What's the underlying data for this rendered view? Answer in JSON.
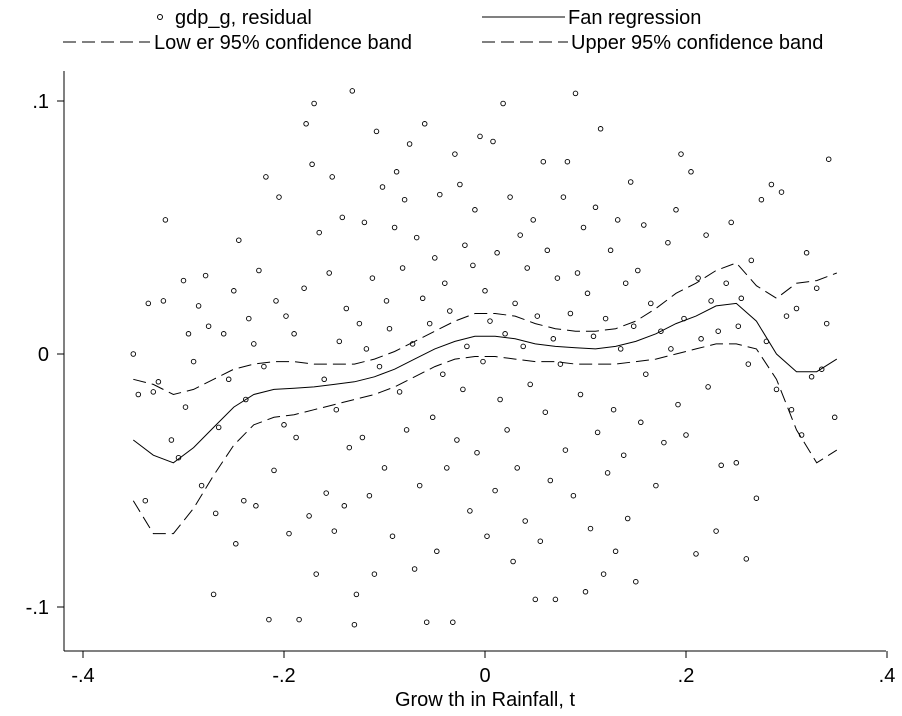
{
  "chart_data": {
    "type": "scatter",
    "title": "",
    "xlabel": "Grow th in Rainfall, t",
    "ylabel": "",
    "xlim": [
      -0.4,
      0.4
    ],
    "ylim": [
      -0.12,
      0.11
    ],
    "x_ticks": [
      -0.4,
      -0.2,
      0,
      0.2,
      0.4
    ],
    "x_tick_labels": [
      "-.4",
      "-.2",
      "0",
      ".2",
      ".4"
    ],
    "y_ticks": [
      -0.1,
      0,
      0.1
    ],
    "y_tick_labels": [
      "-.1",
      "0",
      ".1"
    ],
    "grid": false,
    "legend_position": "top",
    "legend": [
      {
        "label": "gdp_g, residual",
        "style": "hollow-circle"
      },
      {
        "label": "Fan regression",
        "style": "solid-line"
      },
      {
        "label": "Low er 95% confidence band",
        "style": "dashed-line"
      },
      {
        "label": "Upper 95% confidence band",
        "style": "dashed-line"
      }
    ],
    "series": [
      {
        "name": "Fan regression",
        "type": "line",
        "x": [
          -0.35,
          -0.33,
          -0.31,
          -0.29,
          -0.27,
          -0.25,
          -0.23,
          -0.21,
          -0.19,
          -0.17,
          -0.15,
          -0.13,
          -0.11,
          -0.09,
          -0.07,
          -0.05,
          -0.03,
          -0.01,
          0.01,
          0.03,
          0.05,
          0.07,
          0.09,
          0.11,
          0.13,
          0.15,
          0.17,
          0.19,
          0.21,
          0.23,
          0.25,
          0.27,
          0.29,
          0.31,
          0.33,
          0.35
        ],
        "y": [
          -0.034,
          -0.04,
          -0.043,
          -0.037,
          -0.029,
          -0.021,
          -0.016,
          -0.014,
          -0.0135,
          -0.013,
          -0.012,
          -0.011,
          -0.009,
          -0.006,
          -0.002,
          0.002,
          0.005,
          0.007,
          0.007,
          0.006,
          0.004,
          0.003,
          0.0025,
          0.002,
          0.003,
          0.005,
          0.008,
          0.012,
          0.015,
          0.019,
          0.02,
          0.013,
          0.0,
          -0.007,
          -0.007,
          -0.002
        ]
      },
      {
        "name": "Low er 95% confidence band",
        "type": "line",
        "x": [
          -0.35,
          -0.33,
          -0.31,
          -0.29,
          -0.27,
          -0.25,
          -0.23,
          -0.21,
          -0.19,
          -0.17,
          -0.15,
          -0.13,
          -0.11,
          -0.09,
          -0.07,
          -0.05,
          -0.03,
          -0.01,
          0.01,
          0.03,
          0.05,
          0.07,
          0.09,
          0.11,
          0.13,
          0.15,
          0.17,
          0.19,
          0.21,
          0.23,
          0.25,
          0.27,
          0.29,
          0.31,
          0.33,
          0.35
        ],
        "y": [
          -0.058,
          -0.071,
          -0.071,
          -0.061,
          -0.048,
          -0.036,
          -0.028,
          -0.025,
          -0.024,
          -0.022,
          -0.02,
          -0.018,
          -0.016,
          -0.013,
          -0.009,
          -0.005,
          -0.002,
          -0.001,
          -0.001,
          -0.002,
          -0.003,
          -0.003,
          -0.004,
          -0.004,
          -0.004,
          -0.003,
          -0.002,
          0.0,
          0.002,
          0.004,
          0.004,
          0.002,
          -0.01,
          -0.03,
          -0.043,
          -0.038
        ]
      },
      {
        "name": "Upper 95% confidence band",
        "type": "line",
        "x": [
          -0.35,
          -0.33,
          -0.31,
          -0.29,
          -0.27,
          -0.25,
          -0.23,
          -0.21,
          -0.19,
          -0.17,
          -0.15,
          -0.13,
          -0.11,
          -0.09,
          -0.07,
          -0.05,
          -0.03,
          -0.01,
          0.01,
          0.03,
          0.05,
          0.07,
          0.09,
          0.11,
          0.13,
          0.15,
          0.17,
          0.19,
          0.21,
          0.23,
          0.25,
          0.27,
          0.29,
          0.31,
          0.33,
          0.35
        ],
        "y": [
          -0.01,
          -0.012,
          -0.016,
          -0.014,
          -0.01,
          -0.006,
          -0.004,
          -0.003,
          -0.003,
          -0.004,
          -0.004,
          -0.004,
          -0.002,
          0.001,
          0.005,
          0.009,
          0.013,
          0.016,
          0.016,
          0.015,
          0.012,
          0.01,
          0.009,
          0.009,
          0.01,
          0.013,
          0.018,
          0.024,
          0.028,
          0.033,
          0.036,
          0.027,
          0.022,
          0.028,
          0.029,
          0.032
        ]
      },
      {
        "name": "gdp_g, residual",
        "type": "scatter",
        "points": [
          [
            -0.35,
            0.0
          ],
          [
            -0.345,
            -0.016
          ],
          [
            -0.338,
            -0.058
          ],
          [
            -0.335,
            0.02
          ],
          [
            -0.33,
            -0.015
          ],
          [
            -0.325,
            -0.011
          ],
          [
            -0.318,
            0.053
          ],
          [
            -0.32,
            0.021
          ],
          [
            -0.312,
            -0.034
          ],
          [
            -0.305,
            -0.041
          ],
          [
            -0.3,
            0.029
          ],
          [
            -0.298,
            -0.021
          ],
          [
            -0.295,
            0.008
          ],
          [
            -0.29,
            -0.003
          ],
          [
            -0.285,
            0.019
          ],
          [
            -0.282,
            -0.052
          ],
          [
            -0.278,
            0.031
          ],
          [
            -0.275,
            0.011
          ],
          [
            -0.27,
            -0.095
          ],
          [
            -0.268,
            -0.063
          ],
          [
            -0.265,
            -0.029
          ],
          [
            -0.26,
            0.008
          ],
          [
            -0.255,
            -0.01
          ],
          [
            -0.25,
            0.025
          ],
          [
            -0.248,
            -0.075
          ],
          [
            -0.245,
            0.045
          ],
          [
            -0.24,
            -0.058
          ],
          [
            -0.238,
            -0.018
          ],
          [
            -0.235,
            0.014
          ],
          [
            -0.23,
            0.004
          ],
          [
            -0.228,
            -0.06
          ],
          [
            -0.225,
            0.033
          ],
          [
            -0.22,
            -0.005
          ],
          [
            -0.218,
            0.07
          ],
          [
            -0.215,
            -0.105
          ],
          [
            -0.21,
            -0.046
          ],
          [
            -0.208,
            0.021
          ],
          [
            -0.205,
            0.062
          ],
          [
            -0.2,
            -0.028
          ],
          [
            -0.198,
            0.015
          ],
          [
            -0.195,
            -0.071
          ],
          [
            -0.19,
            0.008
          ],
          [
            -0.188,
            -0.033
          ],
          [
            -0.185,
            -0.105
          ],
          [
            -0.18,
            0.026
          ],
          [
            -0.178,
            0.091
          ],
          [
            -0.175,
            -0.064
          ],
          [
            -0.172,
            0.075
          ],
          [
            -0.17,
            0.099
          ],
          [
            -0.168,
            -0.087
          ],
          [
            -0.165,
            0.048
          ],
          [
            -0.16,
            -0.01
          ],
          [
            -0.158,
            -0.055
          ],
          [
            -0.155,
            0.032
          ],
          [
            -0.152,
            0.07
          ],
          [
            -0.15,
            -0.07
          ],
          [
            -0.148,
            -0.022
          ],
          [
            -0.145,
            0.005
          ],
          [
            -0.142,
            0.054
          ],
          [
            -0.14,
            -0.06
          ],
          [
            -0.138,
            0.018
          ],
          [
            -0.135,
            -0.037
          ],
          [
            -0.132,
            0.104
          ],
          [
            -0.13,
            -0.107
          ],
          [
            -0.128,
            -0.095
          ],
          [
            -0.125,
            0.012
          ],
          [
            -0.122,
            -0.033
          ],
          [
            -0.12,
            0.052
          ],
          [
            -0.118,
            0.002
          ],
          [
            -0.115,
            -0.056
          ],
          [
            -0.112,
            0.03
          ],
          [
            -0.11,
            -0.087
          ],
          [
            -0.108,
            0.088
          ],
          [
            -0.105,
            -0.005
          ],
          [
            -0.102,
            0.066
          ],
          [
            -0.1,
            -0.045
          ],
          [
            -0.098,
            0.021
          ],
          [
            -0.095,
            0.01
          ],
          [
            -0.092,
            -0.072
          ],
          [
            -0.09,
            0.05
          ],
          [
            -0.088,
            0.072
          ],
          [
            -0.085,
            -0.015
          ],
          [
            -0.082,
            0.034
          ],
          [
            -0.08,
            0.061
          ],
          [
            -0.078,
            -0.03
          ],
          [
            -0.075,
            0.083
          ],
          [
            -0.072,
            0.004
          ],
          [
            -0.07,
            -0.085
          ],
          [
            -0.068,
            0.046
          ],
          [
            -0.065,
            -0.052
          ],
          [
            -0.062,
            0.022
          ],
          [
            -0.06,
            0.091
          ],
          [
            -0.058,
            -0.106
          ],
          [
            -0.055,
            0.012
          ],
          [
            -0.052,
            -0.025
          ],
          [
            -0.05,
            0.038
          ],
          [
            -0.048,
            -0.078
          ],
          [
            -0.045,
            0.063
          ],
          [
            -0.042,
            -0.008
          ],
          [
            -0.04,
            0.028
          ],
          [
            -0.038,
            -0.045
          ],
          [
            -0.035,
            0.017
          ],
          [
            -0.032,
            -0.106
          ],
          [
            -0.03,
            0.079
          ],
          [
            -0.028,
            -0.034
          ],
          [
            -0.025,
            0.067
          ],
          [
            -0.022,
            -0.014
          ],
          [
            -0.02,
            0.043
          ],
          [
            -0.018,
            0.003
          ],
          [
            -0.015,
            -0.062
          ],
          [
            -0.012,
            0.035
          ],
          [
            -0.01,
            0.057
          ],
          [
            -0.008,
            -0.039
          ],
          [
            -0.005,
            0.086
          ],
          [
            -0.002,
            -0.003
          ],
          [
            0.0,
            0.025
          ],
          [
            0.002,
            -0.072
          ],
          [
            0.005,
            0.013
          ],
          [
            0.008,
            0.084
          ],
          [
            0.01,
            -0.054
          ],
          [
            0.012,
            0.04
          ],
          [
            0.015,
            -0.018
          ],
          [
            0.018,
            0.099
          ],
          [
            0.02,
            0.008
          ],
          [
            0.022,
            -0.03
          ],
          [
            0.025,
            0.062
          ],
          [
            0.028,
            -0.082
          ],
          [
            0.03,
            0.02
          ],
          [
            0.032,
            -0.045
          ],
          [
            0.035,
            0.047
          ],
          [
            0.038,
            0.003
          ],
          [
            0.04,
            -0.066
          ],
          [
            0.042,
            0.034
          ],
          [
            0.045,
            -0.012
          ],
          [
            0.048,
            0.053
          ],
          [
            0.05,
            -0.097
          ],
          [
            0.052,
            0.015
          ],
          [
            0.055,
            -0.074
          ],
          [
            0.058,
            0.076
          ],
          [
            0.06,
            -0.023
          ],
          [
            0.062,
            0.041
          ],
          [
            0.065,
            -0.05
          ],
          [
            0.068,
            0.006
          ],
          [
            0.07,
            -0.097
          ],
          [
            0.072,
            0.03
          ],
          [
            0.075,
            -0.004
          ],
          [
            0.078,
            0.062
          ],
          [
            0.08,
            -0.038
          ],
          [
            0.082,
            0.076
          ],
          [
            0.085,
            0.016
          ],
          [
            0.088,
            -0.056
          ],
          [
            0.09,
            0.103
          ],
          [
            0.092,
            0.032
          ],
          [
            0.095,
            -0.016
          ],
          [
            0.098,
            0.05
          ],
          [
            0.1,
            -0.094
          ],
          [
            0.102,
            0.024
          ],
          [
            0.105,
            -0.069
          ],
          [
            0.108,
            0.007
          ],
          [
            0.11,
            0.058
          ],
          [
            0.112,
            -0.031
          ],
          [
            0.115,
            0.089
          ],
          [
            0.118,
            -0.087
          ],
          [
            0.12,
            0.014
          ],
          [
            0.122,
            -0.047
          ],
          [
            0.125,
            0.041
          ],
          [
            0.128,
            -0.022
          ],
          [
            0.13,
            -0.078
          ],
          [
            0.132,
            0.053
          ],
          [
            0.135,
            0.002
          ],
          [
            0.138,
            -0.04
          ],
          [
            0.14,
            0.028
          ],
          [
            0.142,
            -0.065
          ],
          [
            0.145,
            0.068
          ],
          [
            0.148,
            0.011
          ],
          [
            0.15,
            -0.09
          ],
          [
            0.152,
            0.033
          ],
          [
            0.155,
            -0.027
          ],
          [
            0.158,
            0.051
          ],
          [
            0.16,
            -0.008
          ],
          [
            0.165,
            0.02
          ],
          [
            0.17,
            -0.052
          ],
          [
            0.175,
            0.009
          ],
          [
            0.178,
            -0.035
          ],
          [
            0.182,
            0.044
          ],
          [
            0.185,
            0.002
          ],
          [
            0.19,
            0.057
          ],
          [
            0.192,
            -0.02
          ],
          [
            0.195,
            0.079
          ],
          [
            0.198,
            0.014
          ],
          [
            0.2,
            -0.032
          ],
          [
            0.205,
            0.072
          ],
          [
            0.21,
            -0.079
          ],
          [
            0.212,
            0.03
          ],
          [
            0.215,
            0.006
          ],
          [
            0.22,
            0.047
          ],
          [
            0.222,
            -0.013
          ],
          [
            0.225,
            0.021
          ],
          [
            0.23,
            -0.07
          ],
          [
            0.232,
            0.009
          ],
          [
            0.235,
            -0.044
          ],
          [
            0.24,
            0.028
          ],
          [
            0.245,
            0.052
          ],
          [
            0.25,
            -0.043
          ],
          [
            0.252,
            0.011
          ],
          [
            0.255,
            0.022
          ],
          [
            0.26,
            -0.081
          ],
          [
            0.262,
            -0.004
          ],
          [
            0.265,
            0.037
          ],
          [
            0.27,
            -0.057
          ],
          [
            0.275,
            0.061
          ],
          [
            0.28,
            0.005
          ],
          [
            0.285,
            0.067
          ],
          [
            0.29,
            -0.014
          ],
          [
            0.295,
            0.064
          ],
          [
            0.3,
            0.015
          ],
          [
            0.305,
            -0.022
          ],
          [
            0.31,
            0.018
          ],
          [
            0.315,
            -0.032
          ],
          [
            0.32,
            0.04
          ],
          [
            0.325,
            -0.009
          ],
          [
            0.33,
            0.026
          ],
          [
            0.335,
            -0.006
          ],
          [
            0.34,
            0.012
          ],
          [
            0.342,
            0.077
          ],
          [
            0.348,
            -0.025
          ]
        ]
      }
    ]
  }
}
